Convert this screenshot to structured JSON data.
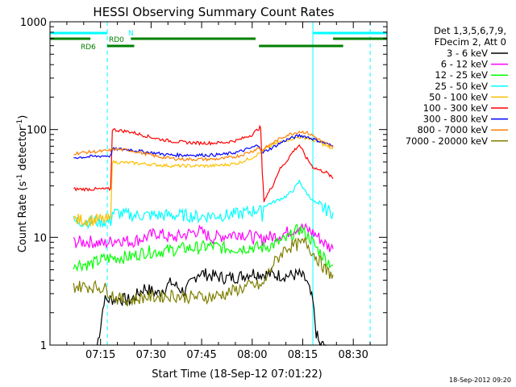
{
  "chart_data": {
    "type": "line",
    "title": "HESSI Observing Summary Count Rates",
    "xlabel": "Start Time (18-Sep-12 07:01:22)",
    "ylabel_main": "Count Rate (s",
    "ylabel_sup1": "-1",
    "ylabel_mid": " detector",
    "ylabel_sup2": "-1",
    "ylabel_end": ")",
    "xlim_min": [
      0,
      100
    ],
    "ylim": [
      1,
      1000
    ],
    "yscale": "log",
    "x_ticks": [
      {
        "t": 15,
        "label": "07:15"
      },
      {
        "t": 30,
        "label": "07:30"
      },
      {
        "t": 45,
        "label": "07:45"
      },
      {
        "t": 60,
        "label": "08:00"
      },
      {
        "t": 75,
        "label": "08:15"
      },
      {
        "t": 90,
        "label": "08:30"
      }
    ],
    "y_ticks": [
      {
        "v": 1,
        "label": "1"
      },
      {
        "v": 10,
        "label": "10"
      },
      {
        "v": 100,
        "label": "100"
      },
      {
        "v": 1000,
        "label": "1000"
      }
    ],
    "legend_header": [
      "Det 1,3,5,6,7,9,",
      "FDecim 2, Att 0"
    ],
    "series": [
      {
        "name": "3 - 6 keV",
        "color": "#000000",
        "points": [
          [
            14,
            1
          ],
          [
            15,
            1.5
          ],
          [
            16,
            2.6
          ],
          [
            20,
            2.7
          ],
          [
            24,
            2.6
          ],
          [
            28,
            3.4
          ],
          [
            32,
            3.0
          ],
          [
            36,
            3.8
          ],
          [
            40,
            3.1
          ],
          [
            44,
            4.7
          ],
          [
            48,
            4.4
          ],
          [
            52,
            4.2
          ],
          [
            56,
            4.3
          ],
          [
            60,
            4.7
          ],
          [
            62,
            4.6
          ],
          [
            66,
            4.5
          ],
          [
            70,
            4.4
          ],
          [
            74,
            4.5
          ],
          [
            76,
            4.0
          ],
          [
            78,
            2.5
          ],
          [
            79,
            1.3
          ],
          [
            80,
            1
          ],
          [
            82,
            1
          ]
        ]
      },
      {
        "name": "6 - 12 keV",
        "color": "#ff00ff",
        "points": [
          [
            7,
            9
          ],
          [
            12,
            9.1
          ],
          [
            16,
            8.7
          ],
          [
            20,
            9.6
          ],
          [
            24,
            9.1
          ],
          [
            28,
            9.9
          ],
          [
            32,
            11.0
          ],
          [
            36,
            9.8
          ],
          [
            40,
            10.6
          ],
          [
            44,
            11.5
          ],
          [
            48,
            9.9
          ],
          [
            52,
            10.4
          ],
          [
            56,
            11.0
          ],
          [
            60,
            10.1
          ],
          [
            63,
            9.5
          ],
          [
            63.5,
            10
          ],
          [
            66,
            10.1
          ],
          [
            70,
            11.0
          ],
          [
            74,
            12.5
          ],
          [
            77,
            11.5
          ],
          [
            79,
            10.5
          ],
          [
            82,
            8.5
          ],
          [
            84,
            7.8
          ]
        ]
      },
      {
        "name": "12 - 25 keV",
        "color": "#00ff00",
        "points": [
          [
            7,
            5.7
          ],
          [
            12,
            5.6
          ],
          [
            16,
            6.3
          ],
          [
            20,
            6.5
          ],
          [
            24,
            6.6
          ],
          [
            28,
            7.3
          ],
          [
            32,
            7.4
          ],
          [
            36,
            7.6
          ],
          [
            40,
            7.9
          ],
          [
            44,
            8.0
          ],
          [
            48,
            8.3
          ],
          [
            52,
            7.9
          ],
          [
            56,
            7.9
          ],
          [
            60,
            8.1
          ],
          [
            63,
            8.0
          ],
          [
            66,
            8.5
          ],
          [
            70,
            9.5
          ],
          [
            74,
            12.0
          ],
          [
            77,
            10.0
          ],
          [
            79,
            8.0
          ],
          [
            82,
            6.2
          ],
          [
            84,
            5.5
          ]
        ]
      },
      {
        "name": "25 - 50 keV",
        "color": "#00ffff",
        "points": [
          [
            7,
            14
          ],
          [
            12,
            14
          ],
          [
            16,
            14
          ],
          [
            18,
            14
          ],
          [
            18.5,
            17
          ],
          [
            24,
            16
          ],
          [
            28,
            16
          ],
          [
            32,
            16
          ],
          [
            36,
            16
          ],
          [
            40,
            16
          ],
          [
            44,
            15.5
          ],
          [
            48,
            16
          ],
          [
            52,
            16
          ],
          [
            56,
            16.5
          ],
          [
            60,
            17.5
          ],
          [
            62,
            18.5
          ],
          [
            63,
            16
          ],
          [
            63.5,
            19.5
          ],
          [
            66,
            21
          ],
          [
            70,
            24
          ],
          [
            72,
            27
          ],
          [
            74,
            33
          ],
          [
            76,
            26
          ],
          [
            78,
            22
          ],
          [
            80,
            19.5
          ],
          [
            82,
            18
          ],
          [
            84,
            17
          ]
        ]
      },
      {
        "name": "50 - 100 keV",
        "color": "#ffbf00",
        "points": [
          [
            7,
            14.5
          ],
          [
            12,
            14.5
          ],
          [
            16,
            14.5
          ],
          [
            18,
            14.5
          ],
          [
            18.5,
            50
          ],
          [
            24,
            49
          ],
          [
            28,
            48
          ],
          [
            32,
            47
          ],
          [
            36,
            46
          ],
          [
            40,
            46
          ],
          [
            44,
            46
          ],
          [
            48,
            46
          ],
          [
            52,
            47
          ],
          [
            56,
            49
          ],
          [
            60,
            55
          ],
          [
            62,
            60
          ],
          [
            63,
            62
          ],
          [
            63.5,
            65
          ],
          [
            66,
            72
          ],
          [
            70,
            80
          ],
          [
            74,
            85
          ],
          [
            76,
            84
          ],
          [
            78,
            80
          ],
          [
            80,
            76
          ],
          [
            82,
            70
          ],
          [
            84,
            66
          ]
        ]
      },
      {
        "name": "100 - 300 keV",
        "color": "#ff0000",
        "points": [
          [
            7,
            28
          ],
          [
            12,
            28
          ],
          [
            16,
            28
          ],
          [
            18,
            28
          ],
          [
            18.5,
            100
          ],
          [
            24,
            95
          ],
          [
            28,
            88
          ],
          [
            32,
            82
          ],
          [
            36,
            78
          ],
          [
            40,
            76
          ],
          [
            44,
            75
          ],
          [
            48,
            75
          ],
          [
            52,
            76
          ],
          [
            56,
            80
          ],
          [
            60,
            90
          ],
          [
            62,
            103
          ],
          [
            62.5,
            105
          ],
          [
            63,
            40
          ],
          [
            63.5,
            22
          ],
          [
            66,
            30
          ],
          [
            68,
            42
          ],
          [
            70,
            50
          ],
          [
            72,
            62
          ],
          [
            74,
            72
          ],
          [
            76,
            55
          ],
          [
            78,
            45
          ],
          [
            80,
            42
          ],
          [
            82,
            40
          ],
          [
            84,
            35
          ]
        ]
      },
      {
        "name": "300 - 800 keV",
        "color": "#0000ff",
        "points": [
          [
            7,
            55
          ],
          [
            12,
            56
          ],
          [
            16,
            57
          ],
          [
            18,
            57
          ],
          [
            18.5,
            66
          ],
          [
            24,
            65
          ],
          [
            28,
            62
          ],
          [
            32,
            60
          ],
          [
            36,
            58
          ],
          [
            40,
            58
          ],
          [
            44,
            58
          ],
          [
            48,
            58
          ],
          [
            52,
            59
          ],
          [
            56,
            62
          ],
          [
            60,
            68
          ],
          [
            62,
            72
          ],
          [
            63,
            60
          ],
          [
            63.5,
            62
          ],
          [
            66,
            68
          ],
          [
            70,
            80
          ],
          [
            74,
            88
          ],
          [
            76,
            86
          ],
          [
            78,
            82
          ],
          [
            80,
            78
          ],
          [
            82,
            74
          ],
          [
            84,
            70
          ]
        ]
      },
      {
        "name": "800 - 7000 keV",
        "color": "#ff7f00",
        "points": [
          [
            7,
            60
          ],
          [
            12,
            62
          ],
          [
            16,
            63
          ],
          [
            18,
            64
          ],
          [
            18.5,
            66
          ],
          [
            24,
            64
          ],
          [
            28,
            60
          ],
          [
            32,
            56
          ],
          [
            36,
            54
          ],
          [
            40,
            53
          ],
          [
            44,
            53
          ],
          [
            48,
            53
          ],
          [
            52,
            54
          ],
          [
            56,
            57
          ],
          [
            60,
            63
          ],
          [
            62,
            68
          ],
          [
            63,
            62
          ],
          [
            63.5,
            66
          ],
          [
            66,
            75
          ],
          [
            70,
            88
          ],
          [
            74,
            96
          ],
          [
            76,
            94
          ],
          [
            78,
            88
          ],
          [
            80,
            80
          ],
          [
            82,
            73
          ],
          [
            84,
            68
          ]
        ]
      },
      {
        "name": "7000 - 20000 keV",
        "color": "#7f7f00",
        "points": [
          [
            7,
            3.5
          ],
          [
            12,
            3.5
          ],
          [
            16,
            3.4
          ],
          [
            20,
            2.7
          ],
          [
            24,
            2.6
          ],
          [
            28,
            2.8
          ],
          [
            32,
            2.8
          ],
          [
            36,
            2.9
          ],
          [
            40,
            2.8
          ],
          [
            44,
            2.8
          ],
          [
            48,
            2.8
          ],
          [
            52,
            3.0
          ],
          [
            56,
            3.3
          ],
          [
            60,
            3.6
          ],
          [
            63,
            3.5
          ],
          [
            66,
            5.5
          ],
          [
            70,
            8.0
          ],
          [
            74,
            8.6
          ],
          [
            76,
            9.0
          ],
          [
            78,
            7.2
          ],
          [
            80,
            6.0
          ],
          [
            82,
            4.8
          ],
          [
            84,
            4.5
          ]
        ]
      }
    ],
    "attenuator_lines": [
      {
        "label": "N",
        "color": "#00ffff",
        "segments": [
          [
            0,
            17
          ],
          [
            78,
            100
          ]
        ],
        "level": 780
      },
      {
        "label": "RD0",
        "color": "#008000",
        "segments": [
          [
            -3,
            12
          ],
          [
            24,
            61
          ],
          [
            84,
            100
          ]
        ],
        "level": 690
      },
      {
        "label": "RD6",
        "color": "#008000",
        "segments": [
          [
            17,
            25
          ],
          [
            62,
            87
          ]
        ],
        "level": 560
      }
    ],
    "vlines": [
      {
        "t": 0,
        "color": "#00ffff",
        "style": "solid"
      },
      {
        "t": 17,
        "color": "#00ffff",
        "style": "dashed"
      },
      {
        "t": 78,
        "color": "#00ffff",
        "style": "solid"
      },
      {
        "t": 95,
        "color": "#00ffff",
        "style": "dashed"
      }
    ]
  },
  "footer_timestamp": "18-Sep-2012 09:20"
}
